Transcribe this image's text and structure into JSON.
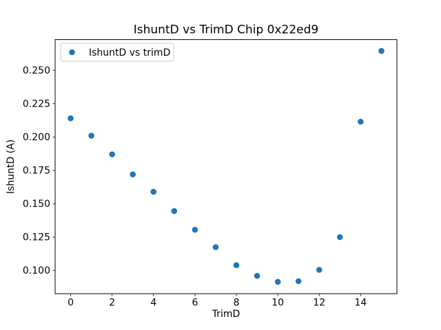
{
  "figure": {
    "kind": "matplotlib-scatter-figure",
    "background": "#ffffff"
  },
  "chart_data": {
    "type": "scatter",
    "title": "IshuntD vs TrimD Chip 0x22ed9",
    "xlabel": "TrimD",
    "ylabel": "IshuntD (A)",
    "legend": {
      "label": "IshuntD vs trimD",
      "position": "upper left",
      "marker": "circle-marker-icon"
    },
    "x": [
      0,
      1,
      2,
      3,
      4,
      5,
      6,
      7,
      8,
      9,
      10,
      11,
      12,
      13,
      14,
      15
    ],
    "y": [
      0.214,
      0.201,
      0.187,
      0.172,
      0.159,
      0.1445,
      0.1305,
      0.1175,
      0.104,
      0.096,
      0.0915,
      0.092,
      0.1005,
      0.125,
      0.2115,
      0.2645
    ],
    "xlim": [
      -0.75,
      15.75
    ],
    "ylim": [
      0.0826,
      0.273
    ],
    "xticks": [
      0,
      2,
      4,
      6,
      8,
      10,
      12,
      14
    ],
    "xtick_labels": [
      "0",
      "2",
      "4",
      "6",
      "8",
      "10",
      "12",
      "14"
    ],
    "yticks": [
      0.1,
      0.125,
      0.15,
      0.175,
      0.2,
      0.225,
      0.25
    ],
    "ytick_labels": [
      "0.100",
      "0.125",
      "0.150",
      "0.175",
      "0.200",
      "0.225",
      "0.250"
    ],
    "grid": false,
    "marker_color": "#1f77b4",
    "spine_color": "#000000",
    "legend_edge_color": "#cccccc",
    "legend_face_color": "#ffffff"
  }
}
